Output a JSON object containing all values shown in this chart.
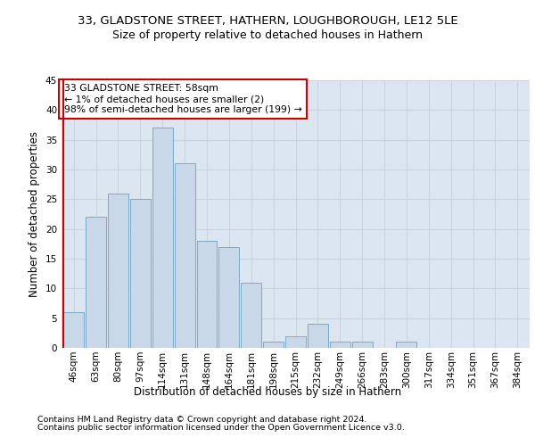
{
  "title_line1": "33, GLADSTONE STREET, HATHERN, LOUGHBOROUGH, LE12 5LE",
  "title_line2": "Size of property relative to detached houses in Hathern",
  "xlabel": "Distribution of detached houses by size in Hathern",
  "ylabel": "Number of detached properties",
  "footer_line1": "Contains HM Land Registry data © Crown copyright and database right 2024.",
  "footer_line2": "Contains public sector information licensed under the Open Government Licence v3.0.",
  "categories": [
    "46sqm",
    "63sqm",
    "80sqm",
    "97sqm",
    "114sqm",
    "131sqm",
    "148sqm",
    "164sqm",
    "181sqm",
    "198sqm",
    "215sqm",
    "232sqm",
    "249sqm",
    "266sqm",
    "283sqm",
    "300sqm",
    "317sqm",
    "334sqm",
    "351sqm",
    "367sqm",
    "384sqm"
  ],
  "values": [
    6,
    22,
    26,
    25,
    37,
    31,
    18,
    17,
    11,
    1,
    2,
    4,
    1,
    1,
    0,
    1,
    0,
    0,
    0,
    0,
    0
  ],
  "bar_color": "#c8d8e8",
  "bar_edgecolor": "#7baac8",
  "highlight_color": "#cc0000",
  "annotation_text": "33 GLADSTONE STREET: 58sqm\n← 1% of detached houses are smaller (2)\n98% of semi-detached houses are larger (199) →",
  "annotation_box_edgecolor": "#cc0000",
  "ylim": [
    0,
    45
  ],
  "yticks": [
    0,
    5,
    10,
    15,
    20,
    25,
    30,
    35,
    40,
    45
  ],
  "grid_color": "#c8d4e0",
  "background_color": "#dce6f0",
  "title1_fontsize": 9.5,
  "title2_fontsize": 9,
  "axis_label_fontsize": 8.5,
  "tick_fontsize": 7.5,
  "annotation_fontsize": 7.8,
  "footer_fontsize": 6.8
}
